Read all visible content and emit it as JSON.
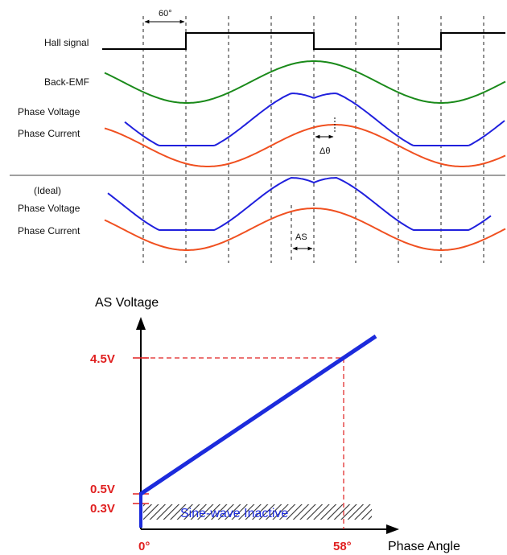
{
  "timing": {
    "angle_marker": "60°",
    "labels": {
      "hall": "Hall signal",
      "bemf": "Back-EMF",
      "phase_voltage": "Phase Voltage",
      "phase_current": "Phase Current",
      "ideal": "(Ideal)",
      "ideal_phase_voltage": "Phase Voltage",
      "ideal_phase_current": "Phase Current"
    },
    "delta_theta": "Δθ",
    "as_marker": "AS"
  },
  "graph": {
    "y_title": "AS Voltage",
    "x_title": "Phase Angle",
    "y_ticks": [
      "4.5V",
      "0.5V",
      "0.3V"
    ],
    "x_ticks": [
      "0°",
      "58°"
    ],
    "inactive_label": "Sine-wave Inactive"
  },
  "colors": {
    "hall": "#000000",
    "bemf": "#1a8a1a",
    "phase_voltage": "#2020dd",
    "phase_current": "#f05020",
    "annotation_red": "#e02020",
    "line_blue": "#1c2bdc",
    "inactive_text": "#1c2bdc"
  }
}
